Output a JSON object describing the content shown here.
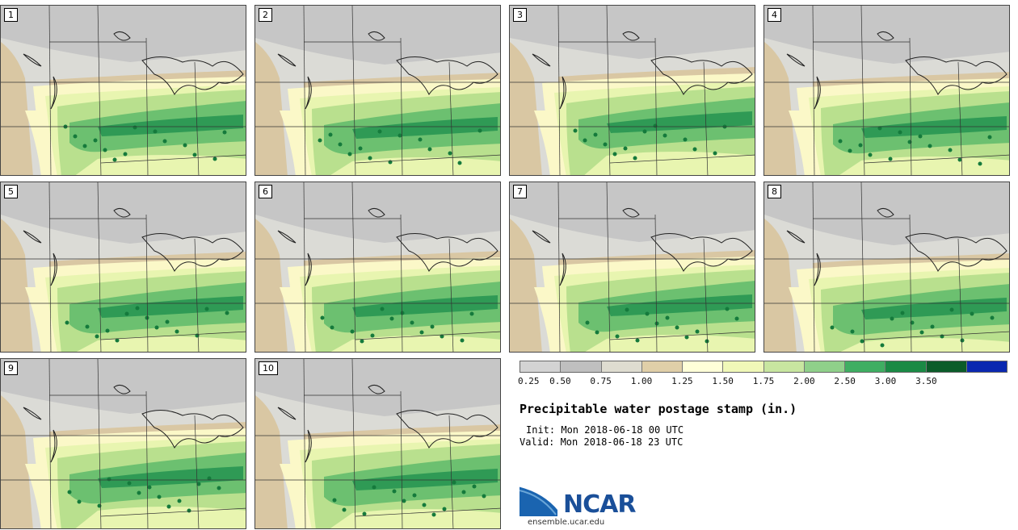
{
  "title": "Precipitable water postage stamp (in.)",
  "init_line": "Init: Mon 2018-06-18 00 UTC",
  "valid_line": "Valid: Mon 2018-06-18 23 UTC",
  "panels": [
    {
      "label": "1",
      "shift": 0
    },
    {
      "label": "2",
      "shift": 3
    },
    {
      "label": "3",
      "shift": -4
    },
    {
      "label": "4",
      "shift": 2
    },
    {
      "label": "5",
      "shift": 6
    },
    {
      "label": "6",
      "shift": 5
    },
    {
      "label": "7",
      "shift": 4
    },
    {
      "label": "8",
      "shift": 8
    },
    {
      "label": "9",
      "shift": -2
    },
    {
      "label": "10",
      "shift": 1
    }
  ],
  "colorbar": {
    "ticks": [
      "0.25",
      "0.50",
      "0.75",
      "1.00",
      "1.25",
      "1.50",
      "1.75",
      "2.00",
      "2.50",
      "3.00",
      "3.50"
    ],
    "colors": [
      "#d3d3d3",
      "#bfbfbf",
      "#dedcd0",
      "#e0cfa8",
      "#ffffd8",
      "#f0f8b8",
      "#c8e6a0",
      "#8fd08a",
      "#3fae62",
      "#1a8a45",
      "#0b5c2a",
      "#0a28b0"
    ]
  },
  "logo": {
    "text": "NCAR",
    "url": "ensemble.ucar.edu"
  },
  "colors": {
    "gray_dark": "#c6c6c6",
    "gray_light": "#dbdbd6",
    "tan": "#d9c7a3",
    "cream": "#fbf8c8",
    "lime": "#e8f5b0",
    "green_light": "#b9e08e",
    "green_mid": "#6cc070",
    "green_dark": "#2f9a55",
    "green_darker": "#157a3c"
  }
}
